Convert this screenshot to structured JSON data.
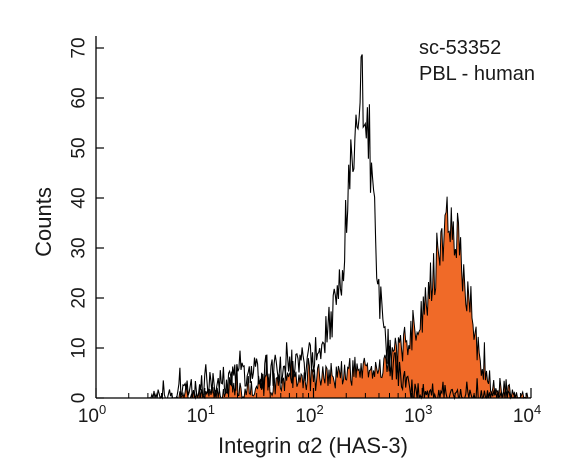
{
  "chart_data": {
    "type": "area",
    "xlabel": "Integrin α2 (HAS-3)",
    "ylabel": "Counts",
    "xscale": "log",
    "xlim": [
      1,
      10000
    ],
    "ylim": [
      0,
      70
    ],
    "xticks": [
      {
        "value": 1,
        "base": "10",
        "exp": "0"
      },
      {
        "value": 10,
        "base": "10",
        "exp": "1"
      },
      {
        "value": 100,
        "base": "10",
        "exp": "2"
      },
      {
        "value": 1000,
        "base": "10",
        "exp": "3"
      },
      {
        "value": 10000,
        "base": "10",
        "exp": "4"
      }
    ],
    "yticks": [
      0,
      10,
      20,
      30,
      40,
      50,
      60,
      70
    ],
    "grid": false,
    "annotations": [
      "sc-53352",
      "PBL - human"
    ],
    "fill_color": "#f06a28",
    "series": [
      {
        "style": "outline",
        "color": "#000000",
        "x": [
          1,
          3,
          5,
          7,
          10,
          15,
          20,
          30,
          50,
          70,
          100,
          130,
          160,
          180,
          200,
          220,
          240,
          260,
          280,
          300,
          320,
          340,
          360,
          400,
          450,
          500,
          600,
          700,
          800,
          1000,
          1500,
          2000,
          3000,
          5000,
          10000
        ],
        "y": [
          0,
          0,
          0.5,
          1.5,
          2.5,
          3.5,
          4,
          5,
          6,
          6.5,
          8,
          12,
          18,
          25,
          35,
          45,
          52,
          58,
          62,
          60,
          55,
          45,
          35,
          22,
          13,
          8,
          5,
          3,
          2,
          1,
          0.5,
          0.3,
          0.2,
          0.1,
          0
        ]
      },
      {
        "style": "filled",
        "color": "#f06a28",
        "x": [
          1,
          5,
          10,
          20,
          30,
          50,
          100,
          200,
          300,
          400,
          500,
          600,
          700,
          800,
          900,
          1000,
          1100,
          1200,
          1300,
          1400,
          1500,
          1600,
          1700,
          1800,
          1900,
          2000,
          2200,
          2500,
          2800,
          3000,
          3500,
          4000,
          5000,
          7000,
          10000
        ],
        "y": [
          0,
          0,
          0.5,
          1.5,
          2.5,
          3,
          4,
          5,
          6,
          6.5,
          7.5,
          9,
          11,
          13,
          15,
          17,
          20,
          23,
          26,
          29,
          32,
          34,
          36,
          37,
          36,
          34,
          29,
          23,
          16,
          12,
          7,
          4,
          2,
          0.5,
          0
        ]
      }
    ]
  }
}
